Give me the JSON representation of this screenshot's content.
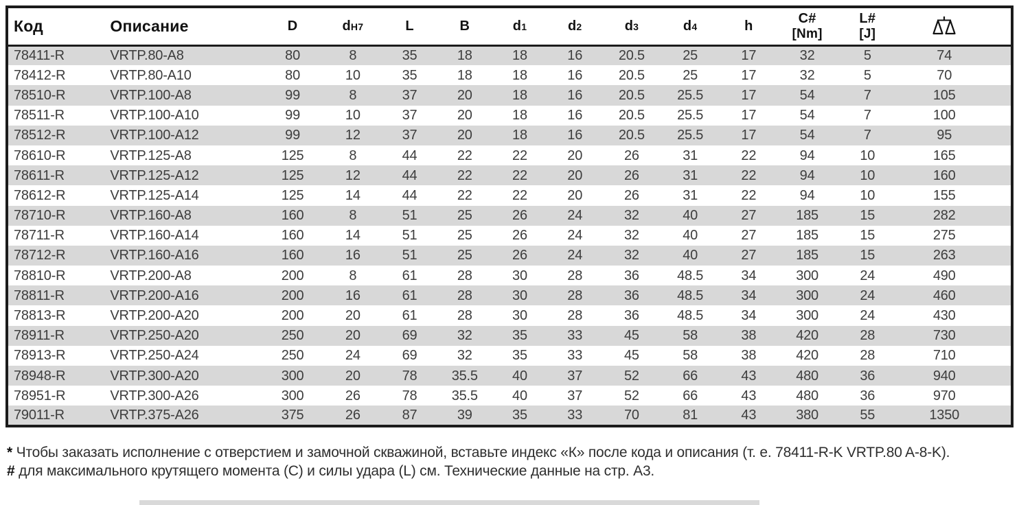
{
  "table": {
    "columns": [
      {
        "key": "code",
        "label": "Код",
        "type": "text"
      },
      {
        "key": "description",
        "label": "Описание",
        "type": "text"
      },
      {
        "key": "D",
        "label": "D"
      },
      {
        "key": "dH7",
        "label": "d",
        "small": "H7"
      },
      {
        "key": "L",
        "label": "L"
      },
      {
        "key": "B",
        "label": "B"
      },
      {
        "key": "d1",
        "label": "d",
        "small": "1"
      },
      {
        "key": "d2",
        "label": "d",
        "small": "2"
      },
      {
        "key": "d3",
        "label": "d",
        "small": "3"
      },
      {
        "key": "d4",
        "label": "d",
        "small": "4"
      },
      {
        "key": "h",
        "label": "h"
      },
      {
        "key": "C_Nm",
        "label": "C#",
        "unit": "[Nm]"
      },
      {
        "key": "L_J",
        "label": "L#",
        "unit": "[J]"
      },
      {
        "key": "weight",
        "icon": "weight-scale-icon"
      }
    ],
    "rows": [
      [
        "78411-R",
        "VRTP.80-A8",
        "80",
        "8",
        "35",
        "18",
        "18",
        "16",
        "20.5",
        "25",
        "17",
        "32",
        "5",
        "74"
      ],
      [
        "78412-R",
        "VRTP.80-A10",
        "80",
        "10",
        "35",
        "18",
        "18",
        "16",
        "20.5",
        "25",
        "17",
        "32",
        "5",
        "70"
      ],
      [
        "78510-R",
        "VRTP.100-A8",
        "99",
        "8",
        "37",
        "20",
        "18",
        "16",
        "20.5",
        "25.5",
        "17",
        "54",
        "7",
        "105"
      ],
      [
        "78511-R",
        "VRTP.100-A10",
        "99",
        "10",
        "37",
        "20",
        "18",
        "16",
        "20.5",
        "25.5",
        "17",
        "54",
        "7",
        "100"
      ],
      [
        "78512-R",
        "VRTP.100-A12",
        "99",
        "12",
        "37",
        "20",
        "18",
        "16",
        "20.5",
        "25.5",
        "17",
        "54",
        "7",
        "95"
      ],
      [
        "78610-R",
        "VRTP.125-A8",
        "125",
        "8",
        "44",
        "22",
        "22",
        "20",
        "26",
        "31",
        "22",
        "94",
        "10",
        "165"
      ],
      [
        "78611-R",
        "VRTP.125-A12",
        "125",
        "12",
        "44",
        "22",
        "22",
        "20",
        "26",
        "31",
        "22",
        "94",
        "10",
        "160"
      ],
      [
        "78612-R",
        "VRTP.125-A14",
        "125",
        "14",
        "44",
        "22",
        "22",
        "20",
        "26",
        "31",
        "22",
        "94",
        "10",
        "155"
      ],
      [
        "78710-R",
        "VRTP.160-A8",
        "160",
        "8",
        "51",
        "25",
        "26",
        "24",
        "32",
        "40",
        "27",
        "185",
        "15",
        "282"
      ],
      [
        "78711-R",
        "VRTP.160-A14",
        "160",
        "14",
        "51",
        "25",
        "26",
        "24",
        "32",
        "40",
        "27",
        "185",
        "15",
        "275"
      ],
      [
        "78712-R",
        "VRTP.160-A16",
        "160",
        "16",
        "51",
        "25",
        "26",
        "24",
        "32",
        "40",
        "27",
        "185",
        "15",
        "263"
      ],
      [
        "78810-R",
        "VRTP.200-A8",
        "200",
        "8",
        "61",
        "28",
        "30",
        "28",
        "36",
        "48.5",
        "34",
        "300",
        "24",
        "490"
      ],
      [
        "78811-R",
        "VRTP.200-A16",
        "200",
        "16",
        "61",
        "28",
        "30",
        "28",
        "36",
        "48.5",
        "34",
        "300",
        "24",
        "460"
      ],
      [
        "78813-R",
        "VRTP.200-A20",
        "200",
        "20",
        "61",
        "28",
        "30",
        "28",
        "36",
        "48.5",
        "34",
        "300",
        "24",
        "430"
      ],
      [
        "78911-R",
        "VRTP.250-A20",
        "250",
        "20",
        "69",
        "32",
        "35",
        "33",
        "45",
        "58",
        "38",
        "420",
        "28",
        "730"
      ],
      [
        "78913-R",
        "VRTP.250-A24",
        "250",
        "24",
        "69",
        "32",
        "35",
        "33",
        "45",
        "58",
        "38",
        "420",
        "28",
        "710"
      ],
      [
        "78948-R",
        "VRTP.300-A20",
        "300",
        "20",
        "78",
        "35.5",
        "40",
        "37",
        "52",
        "66",
        "43",
        "480",
        "36",
        "940"
      ],
      [
        "78951-R",
        "VRTP.300-A26",
        "300",
        "26",
        "78",
        "35.5",
        "40",
        "37",
        "52",
        "66",
        "43",
        "480",
        "36",
        "970"
      ],
      [
        "79011-R",
        "VRTP.375-A26",
        "375",
        "26",
        "87",
        "39",
        "35",
        "33",
        "70",
        "81",
        "43",
        "380",
        "55",
        "1350"
      ]
    ]
  },
  "footnotes": {
    "star_marker": "*",
    "star_text": " Чтобы заказать исполнение с отверстием и замочной скважиной, вставьте индекс «К» после кода и описания (т. е. 78411-R-K VRTP.80 A-8-K).",
    "hash_marker": "#",
    "hash_text": " для максимального крутящего момента (C) и силы удара (L) см. Технические данные на стр. А3."
  },
  "colors": {
    "row_stripe": "#d8d8d8",
    "border": "#1b1b1b",
    "body_text": "#3d3d3d"
  },
  "icons": {
    "weight_scale": "weight-scale-icon"
  }
}
